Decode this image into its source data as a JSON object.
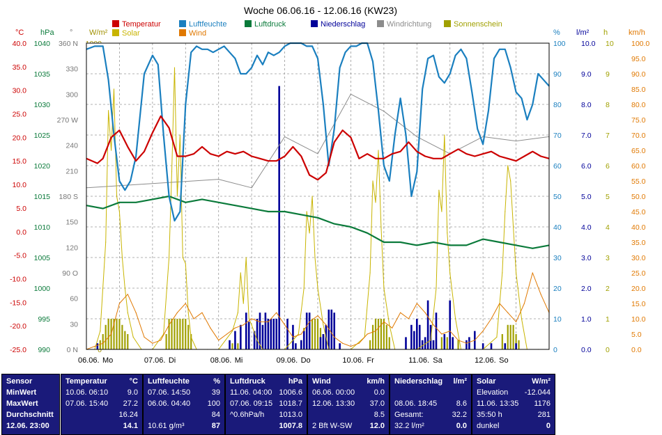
{
  "chart_data": {
    "type": "line",
    "title": "Woche 06.06.16 - 12.06.16 (KW23)",
    "x_labels": [
      "06.06.",
      "Mo",
      "07.06.",
      "Di",
      "08.06.",
      "Mi",
      "09.06.",
      "Do",
      "10.06.",
      "Fr",
      "11.06.",
      "Sa",
      "12.06.",
      "So"
    ],
    "legend": [
      {
        "name": "Temperatur",
        "color": "#cc0000"
      },
      {
        "name": "Luftfeuchte",
        "color": "#1a7fbf"
      },
      {
        "name": "Luftdruck",
        "color": "#0a7a3a"
      },
      {
        "name": "Niederschlag",
        "color": "#000099"
      },
      {
        "name": "Windrichtung",
        "color": "#8c8c8c"
      },
      {
        "name": "Sonnenschein",
        "color": "#a0a000"
      },
      {
        "name": "Solar",
        "color": "#c8b400"
      },
      {
        "name": "Wind",
        "color": "#e07800"
      }
    ],
    "axis_units": {
      "temp": "°C",
      "press": "hPa",
      "dir": "°",
      "solar": "W/m²",
      "hum": "%",
      "rain": "l/m²",
      "sun": "h",
      "wind": "km/h"
    },
    "axes": {
      "temp": [
        "40.0",
        "35.0",
        "30.0",
        "25.0",
        "20.0",
        "15.0",
        "10.0",
        "5.0",
        "0.0",
        "-5.0",
        "-10.0",
        "-15.0",
        "-20.0",
        "-25.0"
      ],
      "press": [
        "1040",
        "1035",
        "1030",
        "1025",
        "1020",
        "1015",
        "1010",
        "1005",
        "1000",
        "995",
        "990"
      ],
      "dir": [
        "360 N",
        "330",
        "300",
        "270 W",
        "240",
        "210",
        "180 S",
        "150",
        "120",
        "90 O",
        "60",
        "30",
        "0 N"
      ],
      "solar": [
        "1000",
        "950",
        "900",
        "850",
        "800",
        "750",
        "700",
        "650",
        "600",
        "550",
        "500",
        "450",
        "400",
        "350",
        "300",
        "250",
        "200",
        "150",
        "100",
        "50",
        "0"
      ],
      "hum": [
        "100",
        "90",
        "80",
        "70",
        "60",
        "50",
        "40",
        "30",
        "20",
        "10",
        "0"
      ],
      "rain": [
        "10.0",
        "9.0",
        "8.0",
        "7.0",
        "6.0",
        "5.0",
        "4.0",
        "3.0",
        "2.0",
        "1.0",
        "0.0"
      ],
      "sun": [
        "10",
        "9",
        "8",
        "7",
        "6",
        "5",
        "4",
        "3",
        "2",
        "1",
        "0"
      ],
      "wind": [
        "100.0",
        "95.0",
        "90.0",
        "85.0",
        "80.0",
        "75.0",
        "70.0",
        "65.0",
        "60.0",
        "55.0",
        "50.0",
        "45.0",
        "40.0",
        "35.0",
        "30.0",
        "25.0",
        "20.0",
        "15.0",
        "10.0",
        "5.0",
        "0.0"
      ]
    },
    "x_range_hours": [
      0,
      168
    ],
    "series": [
      {
        "name": "Temperatur",
        "unit": "°C",
        "x": [
          0,
          4,
          6,
          9,
          12,
          15,
          18,
          21,
          24,
          27,
          30,
          33,
          36,
          39,
          42,
          45,
          48,
          51,
          54,
          57,
          60,
          63,
          66,
          69,
          72,
          75,
          78,
          81,
          84,
          87,
          90,
          93,
          96,
          99,
          102,
          105,
          108,
          111,
          114,
          117,
          120,
          123,
          126,
          129,
          132,
          135,
          138,
          141,
          144,
          147,
          150,
          153,
          156,
          159,
          162,
          165,
          168
        ],
        "values": [
          15.5,
          14.5,
          15.5,
          20.0,
          21.5,
          18.0,
          15.0,
          17.0,
          21.0,
          24.5,
          22.0,
          16.0,
          16.0,
          16.5,
          18.0,
          16.5,
          16.0,
          17.0,
          16.5,
          17.0,
          16.0,
          15.5,
          15.0,
          15.0,
          16.0,
          18.0,
          16.0,
          12.0,
          11.0,
          12.5,
          19.0,
          21.5,
          20.0,
          15.5,
          16.5,
          15.5,
          15.5,
          16.5,
          17.0,
          19.0,
          17.0,
          16.0,
          15.5,
          15.5,
          16.5,
          17.5,
          16.5,
          16.0,
          16.5,
          17.0,
          16.0,
          15.5,
          15.0,
          16.0,
          17.0,
          16.0,
          15.5
        ]
      },
      {
        "name": "Luftfeuchte",
        "unit": "%",
        "x": [
          0,
          3,
          6,
          8,
          10,
          12,
          14,
          16,
          18,
          21,
          24,
          26,
          28,
          30,
          32,
          34,
          36,
          38,
          40,
          42,
          44,
          46,
          48,
          50,
          52,
          54,
          56,
          58,
          60,
          62,
          64,
          66,
          68,
          70,
          72,
          74,
          76,
          78,
          80,
          82,
          84,
          86,
          88,
          90,
          92,
          94,
          96,
          98,
          100,
          102,
          104,
          106,
          108,
          110,
          112,
          114,
          116,
          118,
          120,
          122,
          124,
          126,
          128,
          130,
          132,
          134,
          136,
          138,
          140,
          142,
          144,
          146,
          148,
          150,
          152,
          154,
          156,
          158,
          160,
          162,
          164,
          166,
          168
        ],
        "values": [
          98,
          99,
          99,
          88,
          70,
          55,
          52,
          55,
          63,
          90,
          96,
          93,
          70,
          50,
          42,
          45,
          80,
          97,
          99,
          98,
          98,
          97,
          98,
          99,
          97,
          95,
          90,
          90,
          92,
          96,
          93,
          97,
          96,
          97,
          99,
          100,
          100,
          100,
          99,
          99,
          95,
          80,
          60,
          72,
          92,
          97,
          99,
          99,
          100,
          100,
          94,
          78,
          60,
          55,
          70,
          82,
          70,
          50,
          58,
          85,
          95,
          96,
          89,
          87,
          90,
          96,
          98,
          95,
          84,
          72,
          67,
          78,
          95,
          98,
          98,
          92,
          84,
          82,
          75,
          80,
          90,
          88,
          86
        ]
      },
      {
        "name": "Luftdruck",
        "unit": "hPa",
        "x": [
          0,
          6,
          12,
          18,
          24,
          30,
          36,
          42,
          48,
          54,
          60,
          66,
          72,
          78,
          84,
          90,
          96,
          102,
          108,
          114,
          120,
          126,
          132,
          138,
          144,
          150,
          156,
          162,
          168
        ],
        "values": [
          1013.5,
          1013.0,
          1014.0,
          1014.0,
          1014.5,
          1015.0,
          1014.0,
          1014.5,
          1014.0,
          1013.5,
          1013.0,
          1012.5,
          1012.5,
          1012.0,
          1011.5,
          1010.5,
          1010.0,
          1009.0,
          1007.5,
          1007.5,
          1007.0,
          1007.5,
          1007.0,
          1007.0,
          1008.0,
          1007.5,
          1007.0,
          1006.5,
          1007.0
        ]
      },
      {
        "name": "Windrichtung",
        "unit": "°",
        "x": [
          0,
          48,
          60,
          72,
          84,
          96,
          108,
          120,
          132,
          144,
          156,
          168
        ],
        "values": [
          190,
          200,
          190,
          250,
          230,
          300,
          280,
          250,
          230,
          250,
          245,
          250
        ]
      },
      {
        "name": "Wind",
        "unit": "km/h",
        "x": [
          0,
          3,
          6,
          9,
          12,
          15,
          18,
          21,
          24,
          27,
          30,
          33,
          36,
          39,
          42,
          45,
          48,
          51,
          54,
          57,
          60,
          63,
          66,
          69,
          72,
          75,
          78,
          81,
          84,
          87,
          90,
          93,
          96,
          99,
          102,
          105,
          108,
          111,
          114,
          117,
          120,
          123,
          126,
          129,
          132,
          135,
          138,
          141,
          144,
          147,
          150,
          153,
          156,
          159,
          162,
          165,
          168
        ],
        "values": [
          0,
          1,
          2,
          5,
          15,
          18,
          12,
          4,
          2,
          3,
          8,
          12,
          15,
          10,
          12,
          7,
          3,
          5,
          7,
          8,
          10,
          9,
          9,
          12,
          8,
          4,
          5,
          9,
          11,
          8,
          4,
          2,
          1,
          2,
          5,
          6,
          9,
          7,
          12,
          10,
          15,
          12,
          8,
          5,
          6,
          3,
          2,
          3,
          6,
          10,
          15,
          12,
          9,
          15,
          25,
          18,
          12
        ]
      },
      {
        "name": "Solar",
        "unit": "W/m²",
        "x": [
          0,
          3,
          5,
          7,
          8,
          9,
          10,
          11,
          12,
          13,
          14,
          15,
          17,
          20,
          24,
          28,
          30,
          31,
          32,
          33,
          34,
          35,
          36,
          37,
          38,
          40,
          44,
          48,
          53,
          55,
          56,
          57,
          58,
          59,
          60,
          62,
          64,
          68,
          72,
          77,
          79,
          80,
          81,
          82,
          83,
          84,
          86,
          88,
          92,
          96,
          101,
          103,
          104,
          105,
          106,
          107,
          108,
          110,
          112,
          116,
          120,
          125,
          127,
          128,
          129,
          130,
          131,
          132,
          134,
          136,
          140,
          144,
          149,
          151,
          152,
          153,
          154,
          155,
          156,
          158,
          160,
          164,
          168
        ],
        "values": [
          0,
          0,
          60,
          350,
          780,
          650,
          850,
          500,
          450,
          300,
          200,
          120,
          40,
          0,
          0,
          50,
          300,
          580,
          920,
          500,
          700,
          300,
          280,
          120,
          40,
          0,
          0,
          0,
          60,
          120,
          250,
          150,
          300,
          100,
          80,
          30,
          0,
          0,
          0,
          50,
          200,
          450,
          380,
          500,
          300,
          200,
          80,
          0,
          0,
          0,
          40,
          250,
          550,
          480,
          650,
          400,
          200,
          80,
          0,
          0,
          0,
          30,
          200,
          520,
          450,
          700,
          380,
          250,
          100,
          0,
          0,
          0,
          40,
          250,
          450,
          600,
          550,
          400,
          250,
          100,
          0,
          0,
          0
        ]
      },
      {
        "name": "Sonnenschein",
        "unit": "h",
        "type": "bars",
        "x": [
          5,
          6,
          7,
          8,
          9,
          10,
          11,
          12,
          13,
          14,
          15,
          29,
          30,
          31,
          32,
          33,
          34,
          35,
          36,
          37,
          38,
          53,
          55,
          58,
          78,
          79,
          80,
          81,
          82,
          83,
          84,
          85,
          86,
          103,
          104,
          105,
          106,
          107,
          108,
          109,
          110,
          127,
          129,
          131,
          133,
          135,
          151,
          153,
          154,
          155,
          156,
          157
        ],
        "values": [
          0.3,
          0.5,
          0.8,
          1.0,
          1.0,
          1.0,
          1.0,
          1.0,
          0.8,
          0.6,
          0.5,
          0.5,
          1.0,
          1.0,
          1.0,
          1.0,
          1.0,
          1.0,
          1.0,
          0.8,
          0.5,
          0.2,
          0.2,
          0.2,
          0.3,
          0.7,
          1.0,
          1.0,
          1.0,
          1.0,
          1.0,
          0.7,
          0.5,
          0.3,
          0.8,
          1.0,
          1.0,
          1.0,
          1.0,
          0.8,
          0.4,
          0.4,
          0.4,
          0.4,
          0.4,
          0.3,
          0.5,
          0.8,
          0.8,
          0.8,
          0.5,
          0.3
        ]
      },
      {
        "name": "Niederschlag",
        "unit": "l/m²",
        "type": "bars",
        "x": [
          4,
          52,
          54,
          56,
          58,
          59,
          61,
          62,
          63,
          64,
          65,
          66,
          67,
          68,
          69,
          70,
          73,
          75,
          76,
          78,
          79,
          80,
          81,
          85,
          86,
          87,
          88,
          89,
          90,
          92,
          116,
          118,
          119,
          120,
          121,
          122,
          123,
          124,
          125,
          126,
          127,
          130,
          132,
          133,
          138,
          139,
          141,
          144,
          147,
          152,
          156
        ],
        "values": [
          0.2,
          0.3,
          0.6,
          0.8,
          1.2,
          0.9,
          0.6,
          1.0,
          1.2,
          0.8,
          1.2,
          1.0,
          1.0,
          1.0,
          1.0,
          8.6,
          1.0,
          0.8,
          0.2,
          0.3,
          0.6,
          1.2,
          1.2,
          0.4,
          0.5,
          0.8,
          1.3,
          1.3,
          1.2,
          0.2,
          0.4,
          0.8,
          0.6,
          1.0,
          0.8,
          0.3,
          0.4,
          1.6,
          0.8,
          0.3,
          1.2,
          0.5,
          1.6,
          0.4,
          0.3,
          0.4,
          0.6,
          0.2,
          0.2,
          0.2,
          0.2
        ]
      }
    ]
  },
  "stats": {
    "sensor": {
      "header": "Sensor",
      "rows": [
        "MinWert",
        "MaxWert",
        "Durchschnitt",
        "12.06. 23:00"
      ]
    },
    "temp": {
      "header": "Temperatur",
      "unit": "°C",
      "rows": [
        [
          "10.06.  06:10",
          "9.0"
        ],
        [
          "07.06.  15:40",
          "27.2"
        ],
        [
          "",
          "16.24"
        ],
        [
          "",
          "14.1"
        ]
      ]
    },
    "hum": {
      "header": "Luftfeuchte",
      "unit": "%",
      "rows": [
        [
          "07.06.  14:50",
          "39"
        ],
        [
          "06.06.  04:40",
          "100"
        ],
        [
          "",
          "84"
        ],
        [
          "10.61 g/m³",
          "87"
        ]
      ]
    },
    "press": {
      "header": "Luftdruck",
      "unit": "hPa",
      "rows": [
        [
          "11.06.  04:00",
          "1006.6"
        ],
        [
          "07.06.  09:15",
          "1018.7"
        ],
        [
          "^0.6hPa/h",
          "1013.0"
        ],
        [
          "",
          "1007.8"
        ]
      ]
    },
    "wind": {
      "header": "Wind",
      "unit": "km/h",
      "rows": [
        [
          "06.06.  00:00",
          "0.0"
        ],
        [
          "12.06.  13:30",
          "37.0"
        ],
        [
          "",
          "8.5"
        ],
        [
          "2 Bft W-SW",
          "12.0"
        ]
      ]
    },
    "rain": {
      "header": "Niederschlag",
      "unit": "l/m²",
      "rows": [
        [
          "",
          ""
        ],
        [
          "08.06.  18:45",
          "8.6"
        ],
        [
          "Gesamt:",
          "32.2"
        ],
        [
          "32.2 l/m²",
          "0.0"
        ]
      ]
    },
    "solar": {
      "header": "Solar",
      "unit": "W/m²",
      "rows": [
        [
          "Elevation",
          "-12.044"
        ],
        [
          "11.06.  13:35",
          "1176"
        ],
        [
          "35:50 h",
          "281"
        ],
        [
          "dunkel",
          "0"
        ]
      ]
    }
  }
}
